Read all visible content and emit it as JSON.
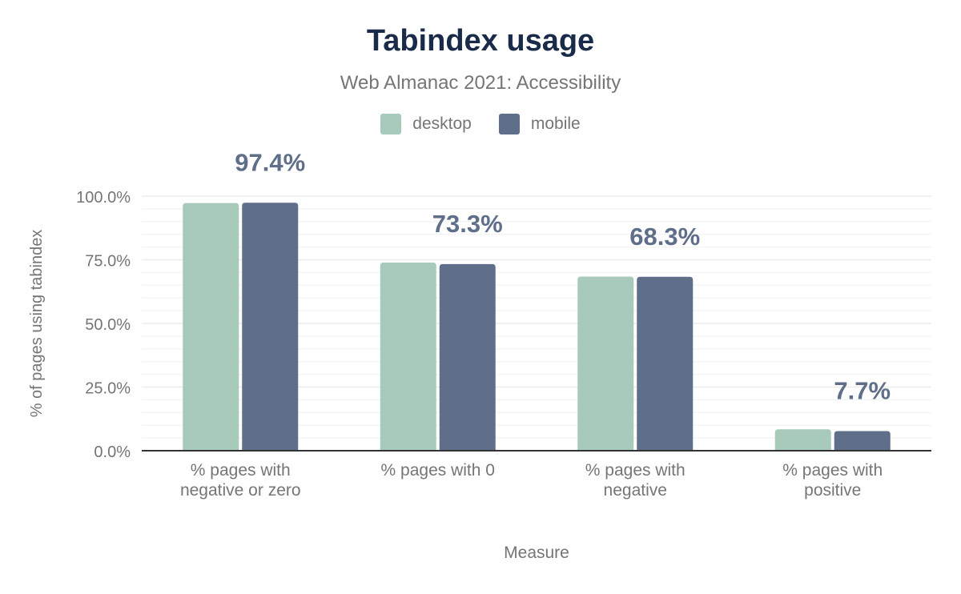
{
  "chart_data": {
    "type": "bar",
    "title": "Tabindex usage",
    "subtitle": "Web Almanac 2021: Accessibility",
    "xlabel": "Measure",
    "ylabel": "% of pages using tabindex",
    "ylim": [
      0,
      100
    ],
    "yticks": [
      "0.0%",
      "25.0%",
      "50.0%",
      "75.0%",
      "100.0%"
    ],
    "grid": true,
    "legend_position": "top",
    "categories": [
      [
        "% pages with",
        "negative or zero"
      ],
      [
        "% pages with 0"
      ],
      [
        "% pages with",
        "negative"
      ],
      [
        "% pages with",
        "positive"
      ]
    ],
    "series": [
      {
        "name": "desktop",
        "color": "#a8cabb",
        "values": [
          97.3,
          73.9,
          68.4,
          8.4
        ]
      },
      {
        "name": "mobile",
        "color": "#5f6f8a",
        "values": [
          97.4,
          73.3,
          68.3,
          7.7
        ]
      }
    ],
    "data_labels": [
      "97.4%",
      "73.3%",
      "68.3%",
      "7.7%"
    ],
    "data_label_color": "#5f6f8a"
  }
}
